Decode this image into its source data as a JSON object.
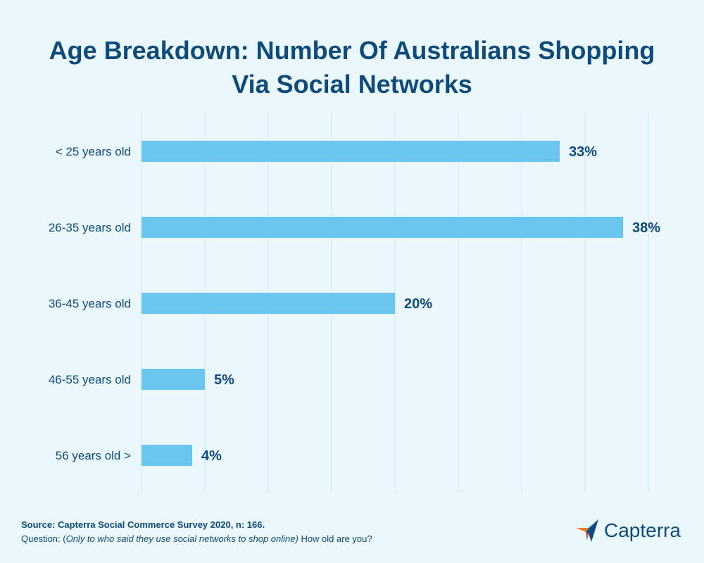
{
  "title_lines": [
    "Age Breakdown: Number Of Australians Shopping",
    "Via Social Networks"
  ],
  "chart_data": {
    "type": "bar",
    "orientation": "horizontal",
    "categories": [
      "< 25 years old",
      "26-35 years old",
      "36-45 years old",
      "46-55 years old",
      "56 years old >"
    ],
    "values": [
      33,
      38,
      20,
      5,
      4
    ],
    "value_labels": [
      "33%",
      "38%",
      "20%",
      "5%",
      "4%"
    ],
    "xlim": [
      0,
      40
    ],
    "grid": true
  },
  "colors": {
    "bar": "#6ac6ee",
    "text": "#0e4b7a",
    "grid": "#cbe9f5",
    "background": "#eaf7fc",
    "logo_orange": "#f37a1f",
    "logo_blue": "#1d7ec2",
    "logo_dark": "#0e4b7a",
    "logo_red": "#e0413a"
  },
  "footer": {
    "source": "Source: Capterra Social Commerce Survey 2020, n: 166.",
    "question_prefix": "Question: (",
    "question_italic": "Only to who said they use social networks to shop online)",
    "question_suffix": " How old are you?"
  },
  "logo": {
    "text": "Capterra",
    "icon": "capterra-arrow-icon"
  }
}
